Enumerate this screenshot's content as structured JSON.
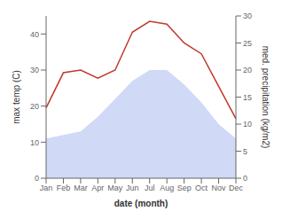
{
  "chart_data": {
    "type": "combo",
    "xlabel": "date (month)",
    "ylabel": "max temp (C)",
    "y2label": "med. precipitation (kg/m2)",
    "categories": [
      "Jan",
      "Feb",
      "Mar",
      "Apr",
      "May",
      "Jun",
      "Jul",
      "Aug",
      "Sep",
      "Oct",
      "Nov",
      "Dec"
    ],
    "series": [
      {
        "type": "area",
        "color": "#b0c0f0",
        "values": [
          11,
          12,
          13,
          17,
          22,
          27,
          30,
          30,
          26,
          21,
          15,
          11
        ]
      },
      {
        "type": "line",
        "color": "#c0392b",
        "axis": "y2",
        "values": [
          13,
          19.5,
          20,
          18.5,
          20,
          27,
          29,
          28.5,
          25,
          23,
          17,
          11
        ]
      }
    ],
    "ylim": [
      0,
      45
    ],
    "yticks": [
      0,
      10,
      20,
      30,
      40
    ],
    "y2lim": [
      0,
      30
    ],
    "y2ticks": [
      0,
      5,
      10,
      15,
      20,
      25,
      30
    ],
    "grid": false
  }
}
